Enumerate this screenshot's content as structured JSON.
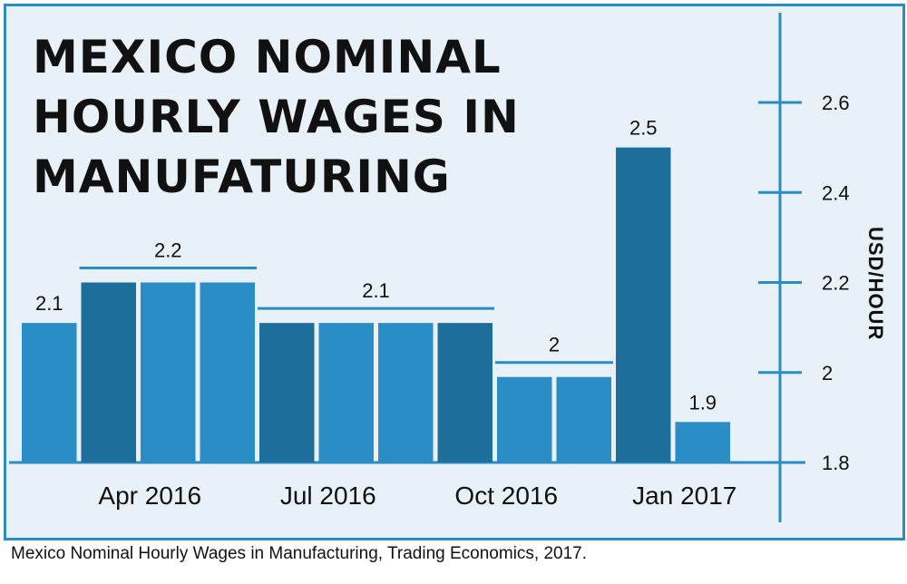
{
  "title": "MEXICO NOMINAL HOURLY WAGES IN MANUFATURING",
  "caption": "Mexico Nominal Hourly Wages in Manufacturing, Trading Economics, 2017.",
  "colors": {
    "bar_light": "#2a8dc5",
    "bar_dark": "#1e6e9c",
    "axis": "#2a8dc5",
    "background": "#e8f0f8",
    "text": "#111111"
  },
  "chart_data": {
    "type": "bar",
    "title": "MEXICO NOMINAL HOURLY WAGES IN MANUFATURING",
    "ylabel": "USD/HOUR",
    "xlabel": "",
    "ylim": [
      1.8,
      2.6
    ],
    "yticks": [
      "1.8",
      "2",
      "2.2",
      "2.4",
      "2.6"
    ],
    "ytick_values": [
      1.8,
      2.0,
      2.2,
      2.4,
      2.6
    ],
    "values": [
      2.11,
      2.2,
      2.2,
      2.2,
      2.11,
      2.11,
      2.11,
      2.11,
      1.99,
      1.99,
      2.5,
      1.89
    ],
    "shade": [
      "light",
      "dark",
      "light",
      "light",
      "dark",
      "light",
      "light",
      "dark",
      "light",
      "light",
      "dark",
      "light"
    ],
    "x_tick_labels": [
      {
        "label": "Apr 2016",
        "bar_index": 2
      },
      {
        "label": "Jul 2016",
        "bar_index": 5
      },
      {
        "label": "Oct 2016",
        "bar_index": 8
      },
      {
        "label": "Jan 2017",
        "bar_index": 11
      }
    ],
    "group_labels": [
      {
        "label": "2.1",
        "from": 0,
        "to": 0,
        "bracket": false
      },
      {
        "label": "2.2",
        "from": 1,
        "to": 3,
        "bracket": true
      },
      {
        "label": "2.1",
        "from": 4,
        "to": 7,
        "bracket": true
      },
      {
        "label": "2",
        "from": 8,
        "to": 9,
        "bracket": true
      },
      {
        "label": "2.5",
        "from": 10,
        "to": 10,
        "bracket": false
      },
      {
        "label": "1.9",
        "from": 11,
        "to": 11,
        "bracket": false
      }
    ],
    "y_axis_position": "right",
    "grid": false
  }
}
